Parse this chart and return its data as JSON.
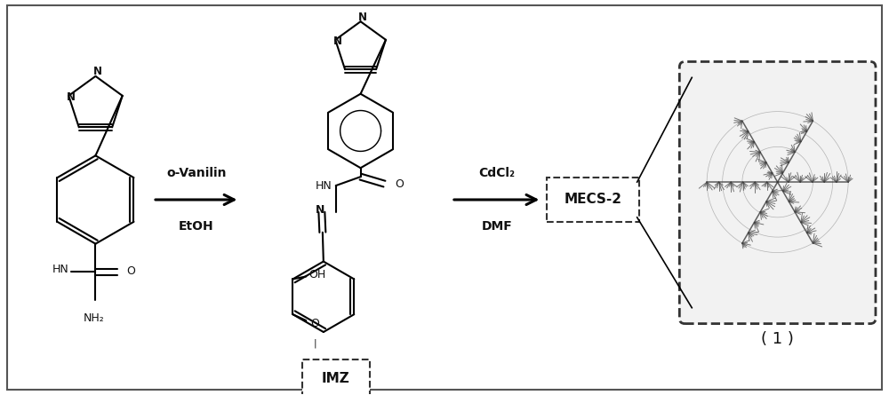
{
  "bg_color": "#ffffff",
  "border_color": "#555555",
  "fig_width": 10.0,
  "fig_height": 4.45,
  "arrow1_label_top": "o-Vanilin",
  "arrow1_label_bot": "EtOH",
  "arrow2_label_top": "CdCl₂",
  "arrow2_label_bot": "DMF",
  "imz_label": "IMZ",
  "mecs_label": "MECS-2",
  "caption": "( 1 )",
  "text_color": "#111111",
  "dash_color": "#333333"
}
